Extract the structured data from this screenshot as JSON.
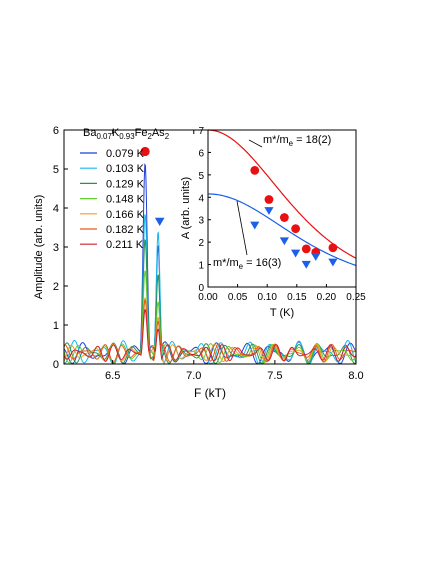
{
  "chart_data": [
    {
      "type": "line",
      "title": "",
      "xlabel": "F (kT)",
      "ylabel": "Amplitude (arb. units)",
      "xlim": [
        6.2,
        8.0
      ],
      "ylim": [
        0,
        6
      ],
      "x_ticks": [
        "6.5",
        "7.0",
        "7.5",
        "8.0"
      ],
      "x_tick_values": [
        6.5,
        7.0,
        7.5,
        8.0
      ],
      "y_ticks": [
        "0",
        "1",
        "2",
        "3",
        "4",
        "5",
        "6"
      ],
      "y_tick_values": [
        0,
        1,
        2,
        3,
        4,
        5,
        6
      ],
      "legend_title": "Ba0.07K0.93Fe2As2",
      "legend_title_parts": [
        {
          "t": "Ba",
          "sub": false
        },
        {
          "t": "0.07",
          "sub": true
        },
        {
          "t": "K",
          "sub": false
        },
        {
          "t": "0.93",
          "sub": true
        },
        {
          "t": "Fe",
          "sub": false
        },
        {
          "t": "2",
          "sub": true
        },
        {
          "t": "As",
          "sub": false
        },
        {
          "t": "2",
          "sub": true
        }
      ],
      "legend_position": "top-left",
      "peaks": [
        6.7,
        6.78
      ],
      "series": [
        {
          "name": "0.079 K",
          "color": "#1f3fd6",
          "peak1": 5.15,
          "peak2": 3.05,
          "noise": 0.32
        },
        {
          "name": "0.103 K",
          "color": "#19b8ea",
          "peak1": 3.85,
          "peak2": 3.4,
          "noise": 0.36
        },
        {
          "name": "0.129 K",
          "color": "#2e8f4e",
          "peak1": 3.2,
          "peak2": 2.3,
          "noise": 0.3
        },
        {
          "name": "0.148 K",
          "color": "#66cc33",
          "peak1": 2.4,
          "peak2": 1.6,
          "noise": 0.28
        },
        {
          "name": "0.166 K",
          "color": "#f0a020",
          "peak1": 1.7,
          "peak2": 1.2,
          "noise": 0.26
        },
        {
          "name": "0.182 K",
          "color": "#e85a18",
          "peak1": 1.65,
          "peak2": 1.1,
          "noise": 0.26
        },
        {
          "name": "0.211 K",
          "color": "#cc2030",
          "peak1": 1.4,
          "peak2": 0.9,
          "noise": 0.24
        }
      ],
      "markers": [
        {
          "shape": "circle",
          "color": "#e81010",
          "x": 6.7,
          "y": 5.45
        },
        {
          "shape": "triangle-down",
          "color": "#1c5fe8",
          "x": 6.79,
          "y": 3.65
        }
      ]
    },
    {
      "type": "scatter",
      "title": "",
      "xlabel": "T (K)",
      "ylabel": "A (arb. units)",
      "xlim": [
        0,
        0.25
      ],
      "ylim": [
        0,
        7
      ],
      "x_ticks": [
        "0.00",
        "0.05",
        "0.10",
        "0.15",
        "0.20",
        "0.25"
      ],
      "x_tick_values": [
        0,
        0.05,
        0.1,
        0.15,
        0.2,
        0.25
      ],
      "y_ticks": [
        "0",
        "1",
        "2",
        "3",
        "4",
        "5",
        "6",
        "7"
      ],
      "y_tick_values": [
        0,
        1,
        2,
        3,
        4,
        5,
        6,
        7
      ],
      "series": [
        {
          "shape": "circle",
          "color": "#e81010",
          "x": [
            0.079,
            0.103,
            0.129,
            0.148,
            0.166,
            0.182,
            0.211
          ],
          "y": [
            5.2,
            3.9,
            3.1,
            2.6,
            1.7,
            1.55,
            1.75
          ],
          "fit": {
            "color": "#e81010",
            "A0": 7.0,
            "k": 14.8
          },
          "annotation": "m*/me = 18(2)",
          "annotation_parts": [
            {
              "t": "m*/m",
              "sub": false
            },
            {
              "t": "e",
              "sub": true
            },
            {
              "t": " = 18(2)",
              "sub": false
            }
          ]
        },
        {
          "shape": "triangle-down",
          "color": "#1c5fe8",
          "x": [
            0.079,
            0.103,
            0.129,
            0.148,
            0.166,
            0.182,
            0.211
          ],
          "y": [
            2.75,
            3.4,
            2.05,
            1.5,
            1.0,
            1.35,
            1.1
          ],
          "fit": {
            "color": "#1c5fe8",
            "A0": 4.15,
            "k": 13.5
          },
          "annotation": "m*/me = 16(3)",
          "annotation_parts": [
            {
              "t": "m*/m",
              "sub": false
            },
            {
              "t": "e",
              "sub": true
            },
            {
              "t": " = 16(3)",
              "sub": false
            }
          ]
        }
      ]
    }
  ]
}
